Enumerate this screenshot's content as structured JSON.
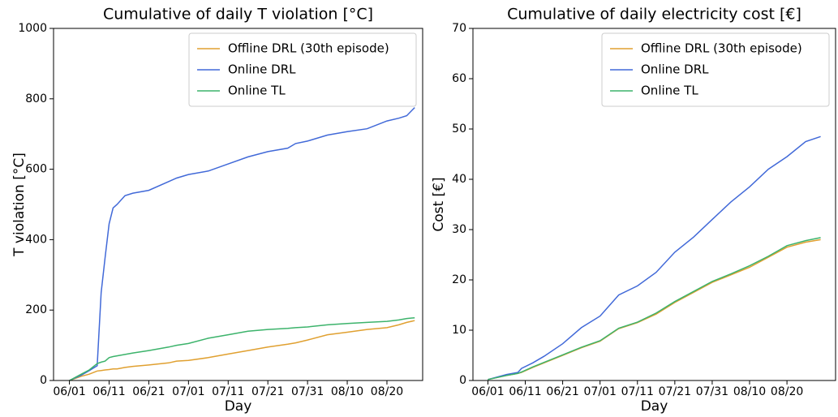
{
  "chart_data": [
    {
      "type": "line",
      "title": "Cumulative of daily T violation [°C]",
      "xlabel": "Day",
      "ylabel": "T violation [°C]",
      "x": [
        "06/01",
        "06/04",
        "06/06",
        "06/08",
        "06/09",
        "06/10",
        "06/11",
        "06/12",
        "06/13",
        "06/15",
        "06/17",
        "06/21",
        "06/26",
        "06/28",
        "07/01",
        "07/06",
        "07/11",
        "07/16",
        "07/21",
        "07/26",
        "07/28",
        "07/31",
        "08/05",
        "08/10",
        "08/15",
        "08/20",
        "08/23",
        "08/25",
        "08/27"
      ],
      "series": [
        {
          "name": "Offline DRL (30th episode)",
          "color": "#e0a030",
          "values": [
            0,
            12,
            18,
            27,
            28,
            30,
            31,
            33,
            33,
            37,
            40,
            44,
            50,
            55,
            57,
            65,
            75,
            85,
            95,
            103,
            107,
            115,
            130,
            137,
            145,
            150,
            158,
            165,
            170
          ]
        },
        {
          "name": "Online DRL",
          "color": "#4169d8",
          "values": [
            0,
            15,
            28,
            42,
            250,
            350,
            445,
            490,
            500,
            525,
            532,
            540,
            565,
            575,
            585,
            595,
            615,
            635,
            650,
            660,
            673,
            680,
            697,
            707,
            715,
            737,
            745,
            752,
            775
          ]
        },
        {
          "name": "Online TL",
          "color": "#3cb36b",
          "values": [
            0,
            18,
            30,
            48,
            52,
            55,
            65,
            68,
            70,
            74,
            78,
            85,
            95,
            100,
            105,
            120,
            130,
            140,
            145,
            148,
            150,
            152,
            158,
            162,
            165,
            168,
            172,
            176,
            178
          ]
        }
      ],
      "xlim": [
        "05/28",
        "08/29"
      ],
      "xticks": [
        "06/01",
        "06/11",
        "06/21",
        "07/01",
        "07/11",
        "07/21",
        "07/31",
        "08/10",
        "08/20"
      ],
      "ylim": [
        0,
        1000
      ],
      "yticks": [
        0,
        200,
        400,
        600,
        800,
        1000
      ],
      "legend": "upper right"
    },
    {
      "type": "line",
      "title": "Cumulative of daily electricity cost [€]",
      "xlabel": "Day",
      "ylabel": "Cost [€]",
      "x": [
        "06/01",
        "06/06",
        "06/09",
        "06/10",
        "06/13",
        "06/16",
        "06/21",
        "06/26",
        "07/01",
        "07/06",
        "07/11",
        "07/16",
        "07/21",
        "07/26",
        "07/31",
        "08/05",
        "08/10",
        "08/15",
        "08/20",
        "08/25",
        "08/29"
      ],
      "series": [
        {
          "name": "Offline DRL (30th episode)",
          "color": "#e0a030",
          "values": [
            0.2,
            1.0,
            1.4,
            1.6,
            2.6,
            3.5,
            5.0,
            6.5,
            7.8,
            10.3,
            11.5,
            13.2,
            15.5,
            17.5,
            19.5,
            21,
            22.5,
            24.5,
            26.5,
            27.5,
            28
          ]
        },
        {
          "name": "Online DRL",
          "color": "#4169d8",
          "values": [
            0.2,
            1.2,
            1.6,
            2.4,
            3.5,
            4.8,
            7.3,
            10.5,
            12.8,
            17,
            18.8,
            21.5,
            25.5,
            28.5,
            32,
            35.5,
            38.5,
            42,
            44.5,
            47.5,
            48.5
          ]
        },
        {
          "name": "Online TL",
          "color": "#3cb36b",
          "values": [
            0.2,
            1.0,
            1.4,
            1.7,
            2.7,
            3.6,
            5.1,
            6.6,
            7.9,
            10.4,
            11.6,
            13.4,
            15.7,
            17.7,
            19.7,
            21.2,
            22.8,
            24.7,
            26.8,
            27.8,
            28.4
          ]
        }
      ],
      "xlim": [
        "05/28",
        "09/02"
      ],
      "xticks": [
        "06/01",
        "06/11",
        "06/21",
        "07/01",
        "07/11",
        "07/21",
        "07/31",
        "08/10",
        "08/20"
      ],
      "ylim": [
        0,
        70
      ],
      "yticks": [
        0,
        10,
        20,
        30,
        40,
        50,
        60,
        70
      ],
      "legend": "upper right"
    }
  ]
}
